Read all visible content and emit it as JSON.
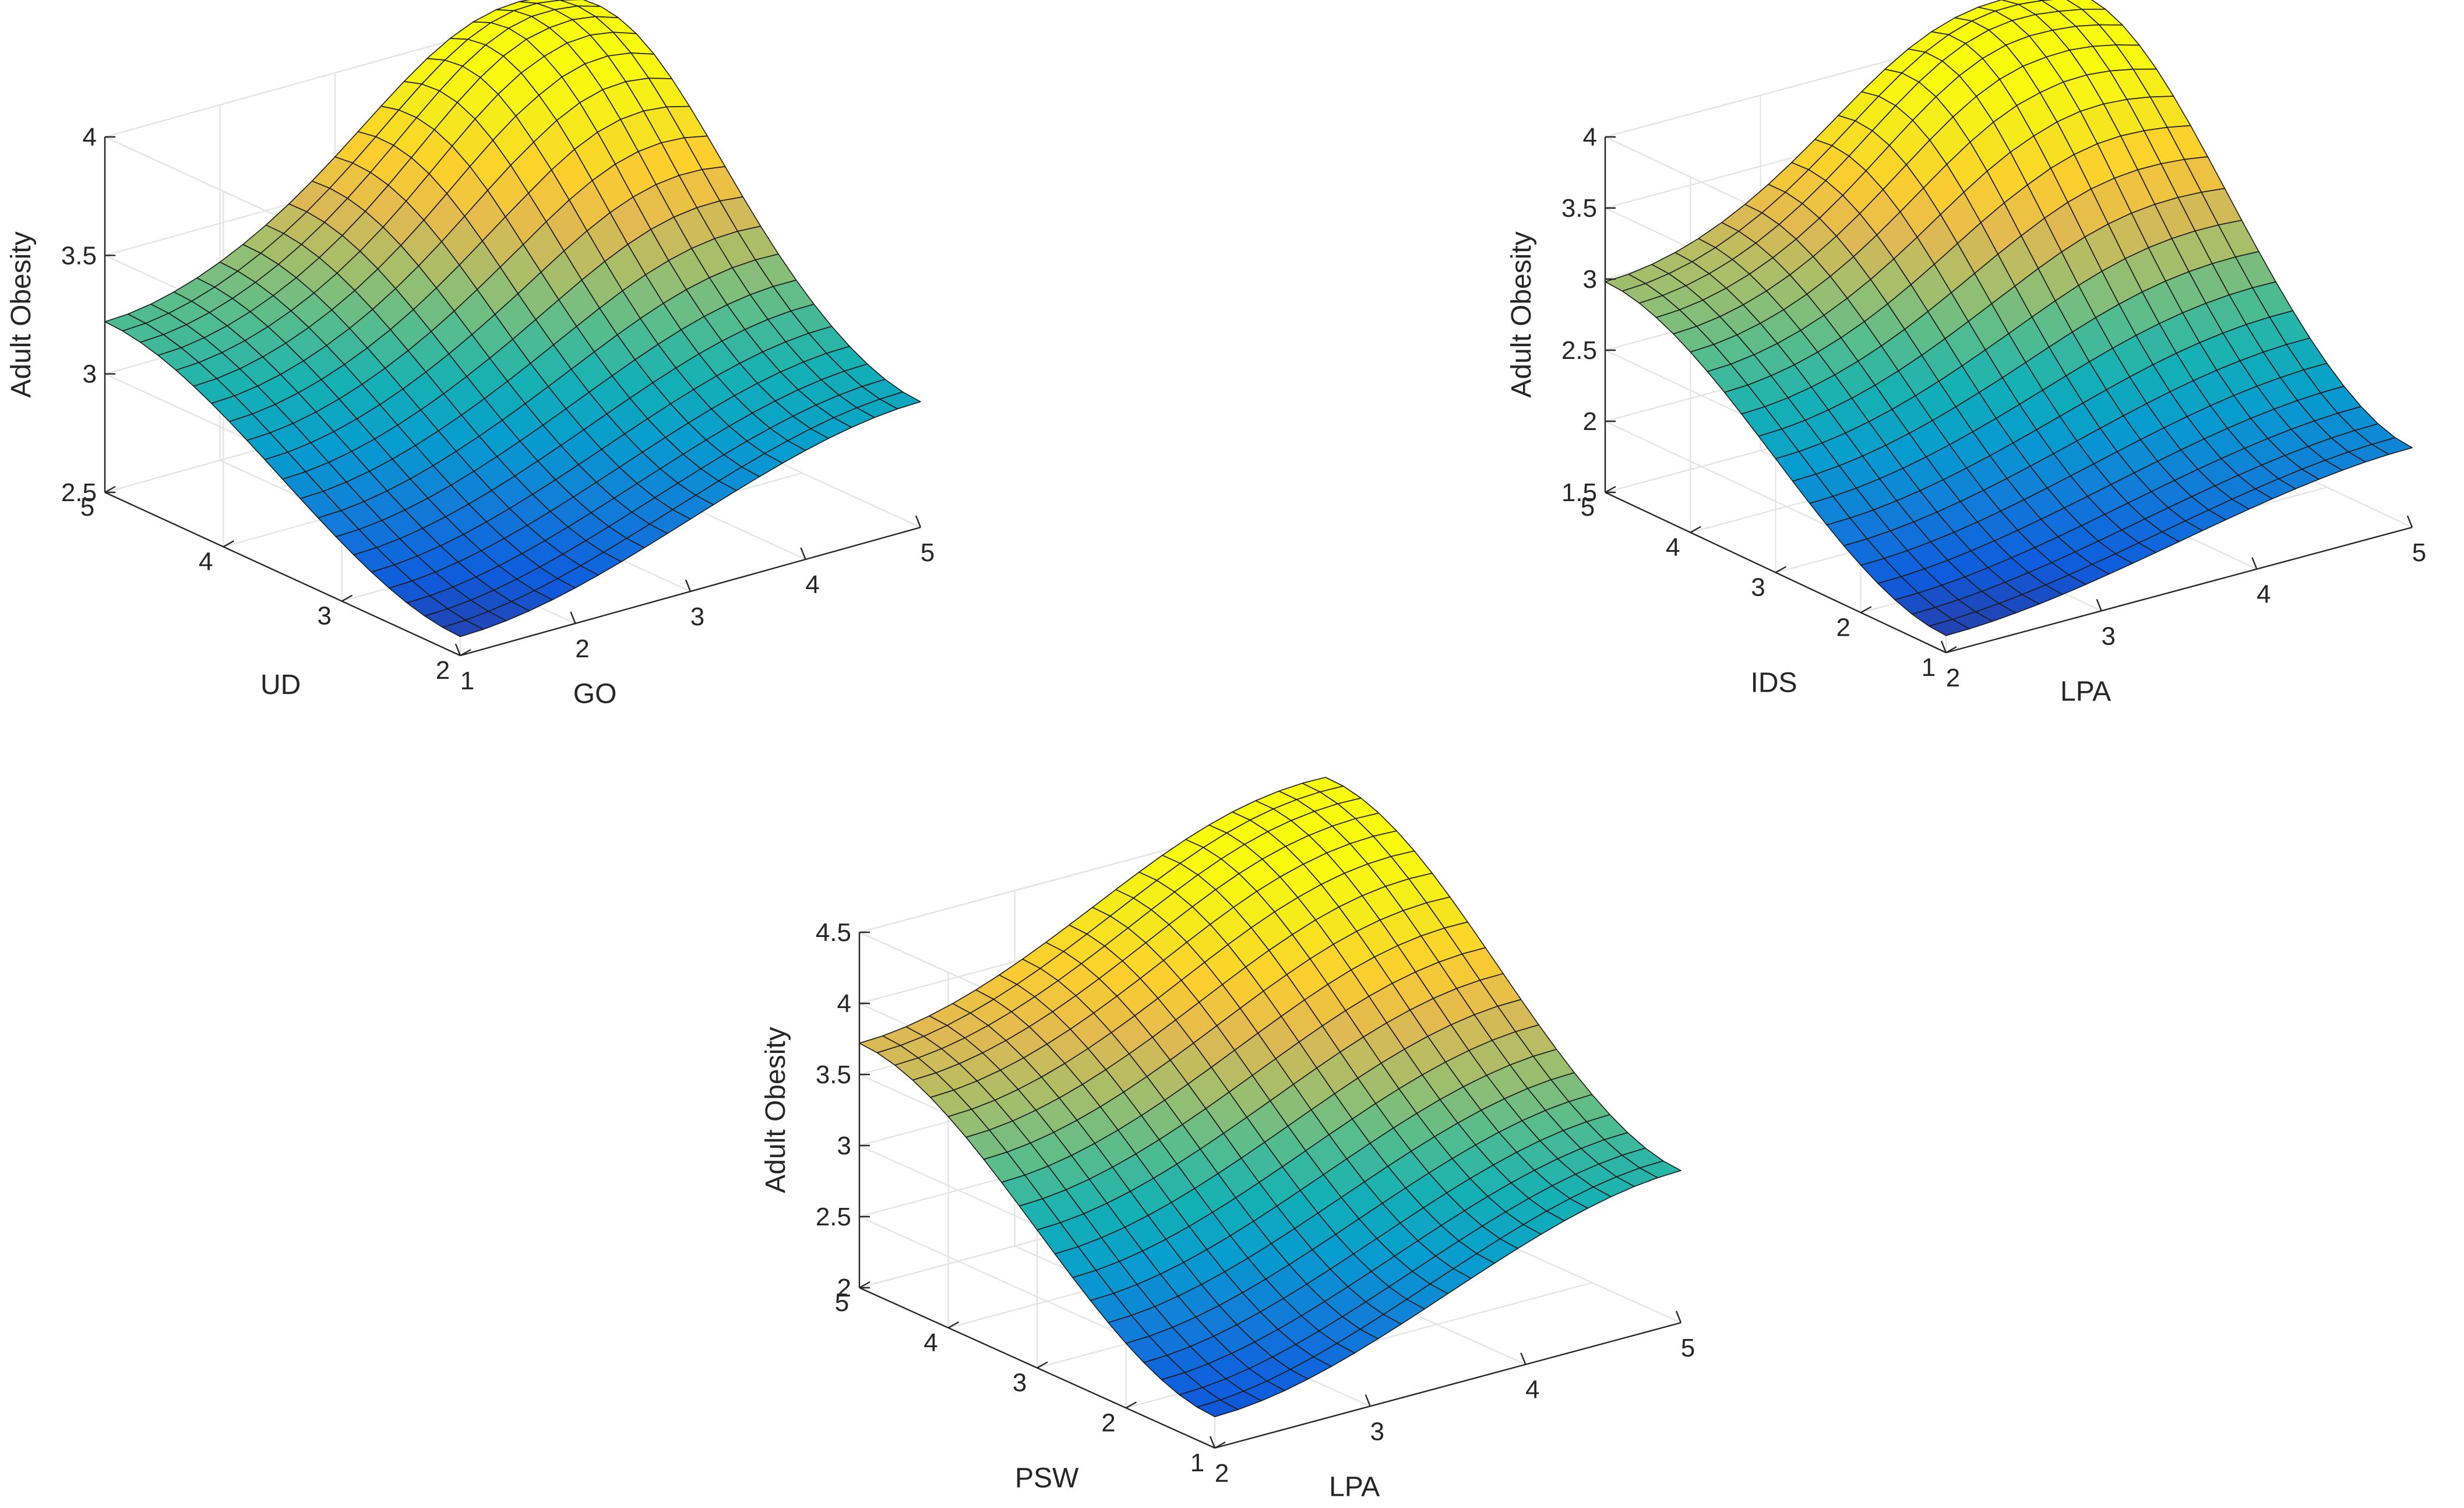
{
  "chart_data": [
    {
      "type": "surface",
      "title": "",
      "xlabel": "GO",
      "ylabel": "UD",
      "zlabel": "Adult Obesity",
      "xlim": [
        1,
        5
      ],
      "ylim": [
        2,
        5
      ],
      "zlim": [
        2.5,
        4
      ],
      "xticks": [
        "1",
        "2",
        "3",
        "4",
        "5"
      ],
      "yticks": [
        "2",
        "3",
        "4",
        "5"
      ],
      "zticks": [
        "2.5",
        "3",
        "3.5",
        "4"
      ],
      "grid": true,
      "colormap": "parula",
      "mesh": [
        21,
        21
      ],
      "surface": {
        "corners": {
          "x_min_y_min": 2.58,
          "x_max_y_min": 3.03,
          "x_min_y_max": 3.22,
          "x_max_y_max": 3.92
        },
        "ridge": {
          "x": 4.2,
          "y": 4.4,
          "height": 0.32
        }
      }
    },
    {
      "type": "surface",
      "title": "",
      "xlabel": "LPA",
      "ylabel": "IDS",
      "zlabel": "Adult Obesity",
      "xlim": [
        2,
        5
      ],
      "ylim": [
        1,
        5
      ],
      "zlim": [
        1.5,
        4
      ],
      "xticks": [
        "2",
        "3",
        "4",
        "5"
      ],
      "yticks": [
        "1",
        "2",
        "3",
        "4",
        "5"
      ],
      "zticks": [
        "1.5",
        "2",
        "2.5",
        "3",
        "3.5",
        "4"
      ],
      "grid": true,
      "colormap": "parula",
      "mesh": [
        21,
        21
      ],
      "surface": {
        "corners": {
          "x_min_y_min": 1.62,
          "x_max_y_min": 2.06,
          "x_min_y_max": 2.98,
          "x_max_y_max": 4.03
        },
        "ridge": {
          "x": 4.1,
          "y": 4.3,
          "height": 0.45
        }
      }
    },
    {
      "type": "surface",
      "title": "",
      "xlabel": "LPA",
      "ylabel": "PSW",
      "zlabel": "Adult Obesity",
      "xlim": [
        2,
        5
      ],
      "ylim": [
        1,
        5
      ],
      "zlim": [
        2,
        4.5
      ],
      "xticks": [
        "2",
        "3",
        "4",
        "5"
      ],
      "yticks": [
        "1",
        "2",
        "3",
        "4",
        "5"
      ],
      "zticks": [
        "2",
        "2.5",
        "3",
        "3.5",
        "4",
        "4.5"
      ],
      "grid": true,
      "colormap": "parula",
      "mesh": [
        21,
        21
      ],
      "surface": {
        "corners": {
          "x_min_y_min": 2.22,
          "x_max_y_min": 3.07,
          "x_min_y_max": 3.72,
          "x_max_y_max": 4.68
        },
        "ridge": {
          "x": 4.2,
          "y": 4.2,
          "height": 0.1
        }
      }
    }
  ]
}
